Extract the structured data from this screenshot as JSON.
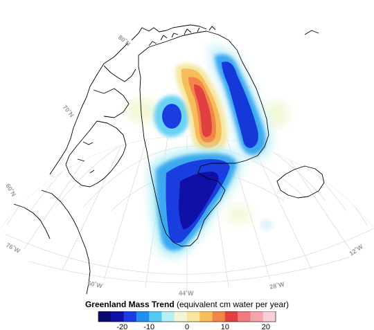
{
  "legend": {
    "title_bold": "Greenland Mass Trend",
    "title_rest": " (equivalent cm water per year)",
    "colors": [
      "#0a0a6e",
      "#1010a8",
      "#1a3de0",
      "#1e90f0",
      "#52c8f2",
      "#b6eef6",
      "#f2f6d8",
      "#f6e6a0",
      "#f6be5a",
      "#f2864a",
      "#e24040",
      "#f07a80",
      "#f4a4aa",
      "#f8cfd4"
    ],
    "tick_labels": [
      "-20",
      "-10",
      "0",
      "10",
      "20"
    ]
  },
  "graticule": {
    "lat_labels": [
      "80˚N",
      "70˚N",
      "60˚N"
    ],
    "lon_labels": [
      "76˚W",
      "60˚W",
      "44˚W",
      "28˚W",
      "12˚W"
    ]
  },
  "colors": {
    "coastline": "#000000",
    "graticule": "#d8d8d8",
    "label": "#9a9a9a"
  }
}
